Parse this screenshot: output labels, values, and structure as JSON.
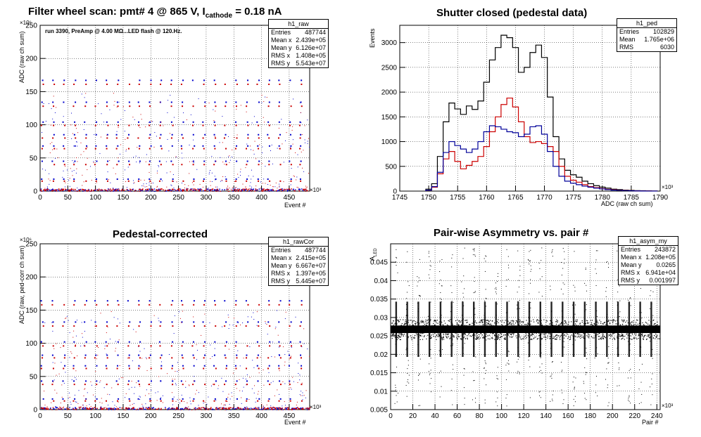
{
  "chart_data": [
    {
      "id": "raw",
      "type": "scatter",
      "title_parts": [
        "Filter wheel scan: pmt#   4 @   865 V, I",
        "cathode",
        " = 0.18 nA"
      ],
      "annotation": "run 3390, PreAmp @ 4.00 MΩ...LED flash @  120.Hz.",
      "xlabel": "Event #",
      "ylabel": "ADC (raw ch sum)",
      "x_exponent": "×10³",
      "y_exponent": "×10⁶",
      "xlim": [
        0,
        487
      ],
      "ylim": [
        0,
        250
      ],
      "x_ticks": [
        0,
        50,
        100,
        150,
        200,
        250,
        300,
        350,
        400,
        450
      ],
      "y_ticks": [
        0,
        50,
        100,
        150,
        200,
        250
      ],
      "grid": true,
      "stats": {
        "name": "h1_raw",
        "rows": [
          [
            "Entries",
            "487744"
          ],
          [
            "Mean x",
            "2.439e+05"
          ],
          [
            "Mean y",
            "6.126e+07"
          ],
          [
            "RMS x",
            "1.408e+05"
          ],
          [
            "RMS y",
            "5.543e+07"
          ]
        ]
      },
      "series": [
        {
          "name": "blue",
          "color": "#0000cc",
          "levels": [
            167,
            134,
            104,
            85,
            68,
            45,
            18
          ]
        },
        {
          "name": "red",
          "color": "#cc0000",
          "levels": [
            161,
            128,
            99,
            80,
            64,
            40,
            15
          ]
        }
      ],
      "x_step_points": [
        4,
        24,
        43,
        62,
        82,
        101,
        121,
        140,
        160,
        179,
        199,
        218,
        238,
        257,
        277,
        296,
        316,
        335,
        355,
        374,
        394,
        413,
        433,
        452,
        471
      ]
    },
    {
      "id": "ped",
      "type": "line",
      "title": "Shutter closed (pedestal data)",
      "xlabel": "ADC (raw ch sum)",
      "ylabel": "Events",
      "x_exponent": "×10³",
      "xlim": [
        1745,
        1790
      ],
      "ylim": [
        0,
        3350
      ],
      "x_ticks": [
        1745,
        1750,
        1755,
        1760,
        1765,
        1770,
        1775,
        1780,
        1785,
        1790
      ],
      "y_ticks": [
        0,
        500,
        1000,
        1500,
        2000,
        2500,
        3000
      ],
      "grid": true,
      "stats": {
        "name": "h1_ped",
        "rows": [
          [
            "Entries",
            "102829"
          ],
          [
            "Mean",
            "1.765e+06"
          ],
          [
            "RMS",
            "6030"
          ]
        ]
      },
      "series": [
        {
          "name": "black",
          "color": "#000000",
          "x": [
            1750,
            1751,
            1752,
            1753,
            1754,
            1755,
            1756,
            1757,
            1758,
            1759,
            1760,
            1761,
            1762,
            1763,
            1764,
            1765,
            1766,
            1767,
            1768,
            1769,
            1770,
            1771,
            1772,
            1773,
            1774,
            1775,
            1776,
            1777,
            1778,
            1779,
            1780,
            1781,
            1782,
            1783,
            1784,
            1785,
            1786,
            1787,
            1788,
            1789
          ],
          "y": [
            40,
            150,
            700,
            1400,
            1780,
            1660,
            1550,
            1720,
            1650,
            1820,
            2200,
            2650,
            2900,
            3150,
            3100,
            2900,
            2400,
            2500,
            2800,
            2950,
            2700,
            1900,
            1100,
            650,
            420,
            330,
            280,
            200,
            150,
            110,
            80,
            60,
            40,
            30,
            20,
            15,
            10,
            8,
            5,
            3
          ]
        },
        {
          "name": "red",
          "color": "#cc0000",
          "x": [
            1750,
            1751,
            1752,
            1753,
            1754,
            1755,
            1756,
            1757,
            1758,
            1759,
            1760,
            1761,
            1762,
            1763,
            1764,
            1765,
            1766,
            1767,
            1768,
            1769,
            1770,
            1771,
            1772,
            1773,
            1774,
            1775,
            1776,
            1777,
            1778,
            1779,
            1780,
            1781,
            1782,
            1783,
            1784,
            1785,
            1786,
            1787,
            1788,
            1789
          ],
          "y": [
            20,
            80,
            350,
            650,
            800,
            600,
            450,
            520,
            600,
            700,
            900,
            1200,
            1500,
            1750,
            1880,
            1700,
            1400,
            1100,
            980,
            1000,
            960,
            900,
            800,
            500,
            300,
            220,
            180,
            130,
            90,
            70,
            50,
            35,
            25,
            18,
            12,
            8,
            5,
            3,
            2,
            1
          ]
        },
        {
          "name": "blue",
          "color": "#000099",
          "x": [
            1750,
            1751,
            1752,
            1753,
            1754,
            1755,
            1756,
            1757,
            1758,
            1759,
            1760,
            1761,
            1762,
            1763,
            1764,
            1765,
            1766,
            1767,
            1768,
            1769,
            1770,
            1771,
            1772,
            1773,
            1774,
            1775,
            1776,
            1777,
            1778,
            1779,
            1780,
            1781,
            1782,
            1783,
            1784,
            1785,
            1786,
            1787,
            1788,
            1789
          ],
          "y": [
            20,
            90,
            380,
            780,
            1000,
            920,
            850,
            780,
            850,
            1000,
            1200,
            1320,
            1300,
            1250,
            1200,
            1180,
            1100,
            1150,
            1300,
            1320,
            1150,
            800,
            500,
            300,
            200,
            160,
            130,
            100,
            80,
            60,
            45,
            30,
            20,
            15,
            10,
            6,
            4,
            2,
            1,
            1
          ]
        }
      ]
    },
    {
      "id": "cor",
      "type": "scatter",
      "title": "Pedestal-corrected",
      "xlabel": "Event #",
      "ylabel": "ADC (raw, ped-corr ch sum)",
      "x_exponent": "×10³",
      "y_exponent": "×10⁶",
      "xlim": [
        0,
        487
      ],
      "ylim": [
        0,
        250
      ],
      "x_ticks": [
        0,
        50,
        100,
        150,
        200,
        250,
        300,
        350,
        400,
        450
      ],
      "y_ticks": [
        0,
        50,
        100,
        150,
        200,
        250
      ],
      "grid": true,
      "stats": {
        "name": "h1_rawCor",
        "rows": [
          [
            "Entries",
            "487744"
          ],
          [
            "Mean x",
            "2.415e+05"
          ],
          [
            "Mean y",
            "6.667e+07"
          ],
          [
            "RMS x",
            "1.397e+05"
          ],
          [
            "RMS y",
            "5.445e+07"
          ]
        ]
      },
      "series": [
        {
          "name": "blue",
          "color": "#0000cc",
          "levels": [
            164,
            132,
            102,
            82,
            66,
            43,
            16
          ]
        },
        {
          "name": "red",
          "color": "#cc0000",
          "levels": [
            158,
            126,
            96,
            78,
            62,
            38,
            13
          ]
        }
      ],
      "x_step_points": [
        4,
        24,
        43,
        62,
        82,
        101,
        121,
        140,
        160,
        179,
        199,
        218,
        238,
        257,
        277,
        296,
        316,
        335,
        355,
        374,
        394,
        413,
        433,
        452,
        471
      ]
    },
    {
      "id": "asym",
      "type": "scatter",
      "title": "Pair-wise Asymmetry vs. pair #",
      "xlabel": "Pair #",
      "ylabel_main": "A",
      "ylabel_sub": "LED",
      "x_exponent": "×10³",
      "xlim": [
        0,
        243
      ],
      "ylim": [
        0.005,
        0.05
      ],
      "x_ticks": [
        0,
        20,
        40,
        60,
        80,
        100,
        120,
        140,
        160,
        180,
        200,
        220,
        240
      ],
      "y_ticks": [
        0.005,
        0.01,
        0.015,
        0.02,
        0.025,
        0.03,
        0.035,
        0.04,
        0.045
      ],
      "y_tick_labels": [
        "0.005",
        "0.01",
        "0.015",
        "0.02",
        "0.025",
        "0.03",
        "0.035",
        "0.04",
        "0.045"
      ],
      "grid": true,
      "stats": {
        "name": "h1_asym_my",
        "rows": [
          [
            "Entries",
            "243872"
          ],
          [
            "Mean x",
            "1.208e+05"
          ],
          [
            "Mean y",
            "0.0265"
          ],
          [
            "RMS x",
            "6.941e+04"
          ],
          [
            "RMS y",
            "0.001997"
          ]
        ]
      },
      "series": [
        {
          "name": "asymmetry",
          "color": "#000000",
          "band_center": 0.0268,
          "band_halfwidth": 0.0017,
          "spike_x": [
            5,
            15,
            25,
            35,
            45,
            55,
            65,
            75,
            85,
            95,
            105,
            115,
            125,
            135,
            145,
            155,
            165,
            175,
            185,
            195,
            205,
            215,
            225,
            235
          ]
        }
      ]
    }
  ]
}
